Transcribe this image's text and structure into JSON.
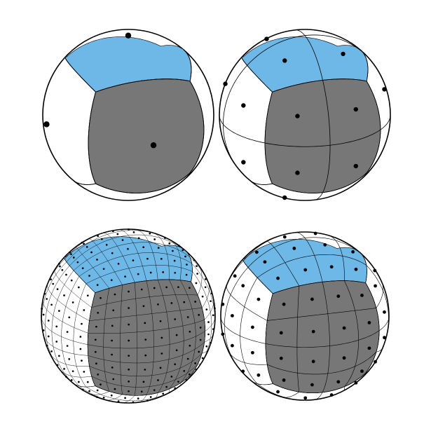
{
  "colors": {
    "face_blue": "#6EB8E8",
    "face_gray": "#777777",
    "line": "#000000",
    "background": "#FFFFFF"
  },
  "panels": [
    {
      "position": "top-left",
      "grid_divisions": 1,
      "points_per_face": 1
    },
    {
      "position": "top-right",
      "grid_divisions": 2,
      "points_per_face": 4
    },
    {
      "position": "bottom-left",
      "grid_divisions": 8,
      "points_per_face": 64
    },
    {
      "position": "bottom-right",
      "grid_divisions": 4,
      "points_per_face": 16
    }
  ]
}
